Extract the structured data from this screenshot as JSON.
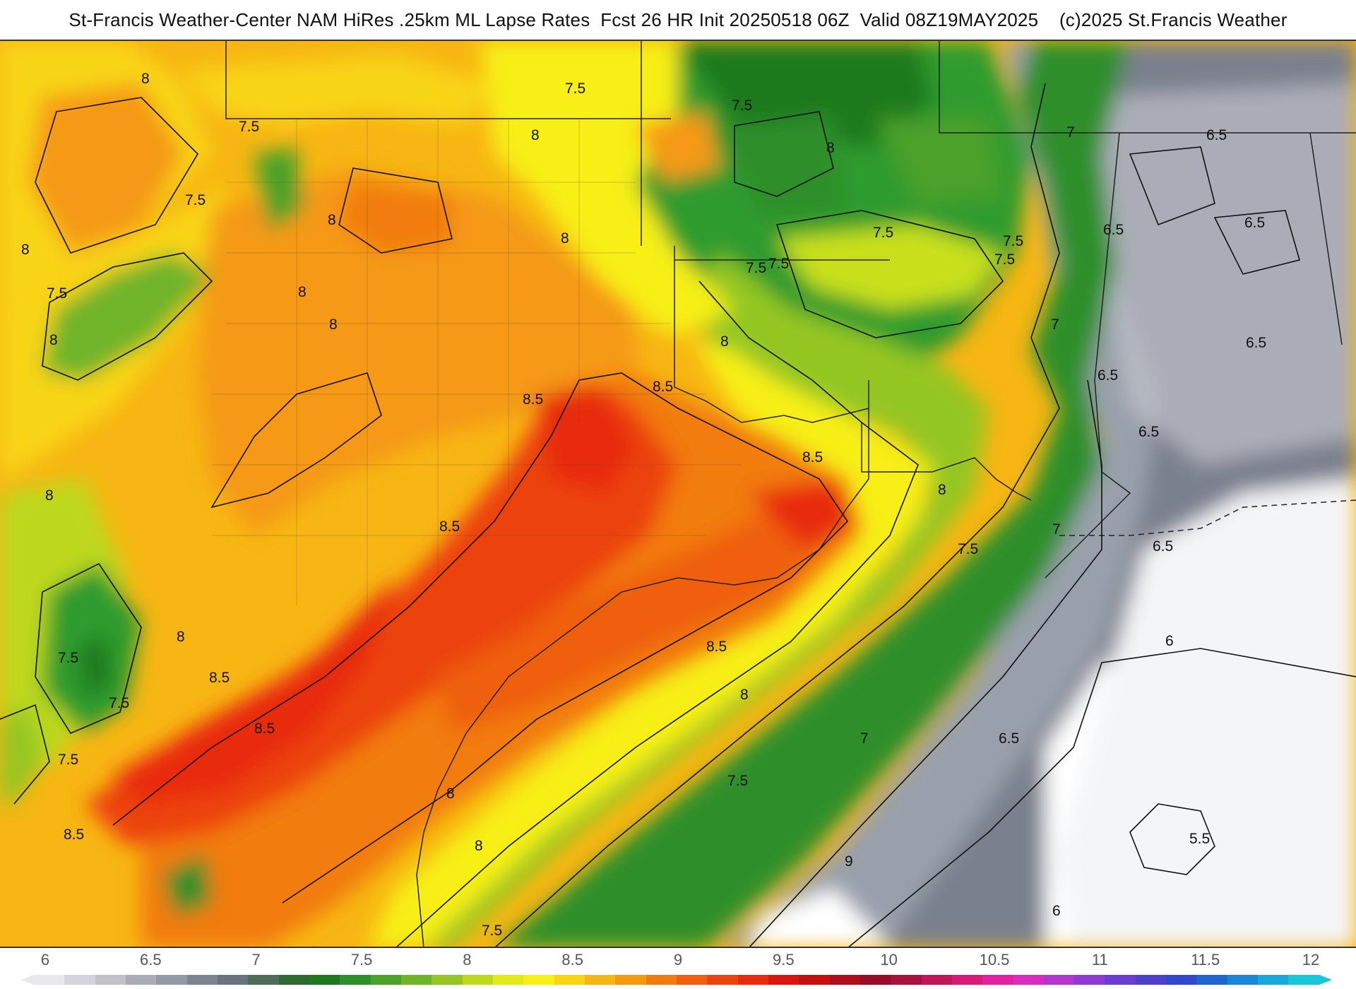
{
  "header": {
    "title": "St-Francis Weather-Center NAM HiRes .25km ML Lapse Rates  Fcst 26 HR Init 20250518 06Z  Valid 08Z19MAY2025    (c)2025 St.Francis Weather"
  },
  "map": {
    "contour_labels": [
      "8",
      "7.5",
      "7.5",
      "8",
      "8",
      "8",
      "7.5",
      "7.5",
      "8",
      "8",
      "8",
      "8",
      "7.5",
      "8",
      "7.5",
      "8",
      "8.5",
      "8.5",
      "8.5",
      "8.5",
      "7.5",
      "8",
      "7",
      "7.5",
      "7",
      "7.5",
      "7.5",
      "6.5",
      "6.5",
      "6.5",
      "6.5",
      "6.5",
      "6.5",
      "8",
      "7.5",
      "7",
      "6.5",
      "6",
      "8.5",
      "8",
      "7.5",
      "7",
      "6.5",
      "6",
      "5.5",
      "9",
      "8.5",
      "8.5",
      "8",
      "8",
      "7.5",
      "7.5",
      "8",
      "7.5",
      "8.5",
      "7.5"
    ],
    "colors": {
      "white": "#ffffff",
      "gray_light": "#c9ccd3",
      "gray": "#9aa0ab",
      "gray_dark": "#7a808d",
      "green_dark": "#1f7a1f",
      "green": "#2e9b2e",
      "green_light": "#7cc22a",
      "yellow_green": "#c8e01c",
      "yellow": "#f3f312",
      "orange_light": "#f7c414",
      "orange": "#f49b12",
      "orange_red": "#ef5a10",
      "red": "#e7250d"
    }
  },
  "legend": {
    "ticks": [
      "6",
      "6.5",
      "7",
      "7.5",
      "8",
      "8.5",
      "9",
      "9.5",
      "10",
      "10.5",
      "11",
      "11.5",
      "12"
    ],
    "colors": [
      "#e6e8ec",
      "#d2d5db",
      "#bfc2ca",
      "#a9adb7",
      "#939aa5",
      "#7c8490",
      "#6a7380",
      "#4f6c5a",
      "#2e6b30",
      "#1f7a1f",
      "#2e8f2b",
      "#4ba12a",
      "#6fb429",
      "#94c624",
      "#bdd81f",
      "#e3e91a",
      "#f7ef15",
      "#f8d414",
      "#f7b613",
      "#f59912",
      "#f27b11",
      "#ef5f10",
      "#ec420f",
      "#e82a0d",
      "#d9170e",
      "#c41013",
      "#ac0e1b",
      "#950e25",
      "#a8123e",
      "#c0175a",
      "#d61c7a",
      "#e221a1",
      "#d92dc2",
      "#b436cf",
      "#8e3bd3",
      "#6b3dd0",
      "#4f40cc",
      "#3148c8",
      "#1f66cf",
      "#1b86d6",
      "#19a8dc",
      "#19c6d8"
    ]
  }
}
